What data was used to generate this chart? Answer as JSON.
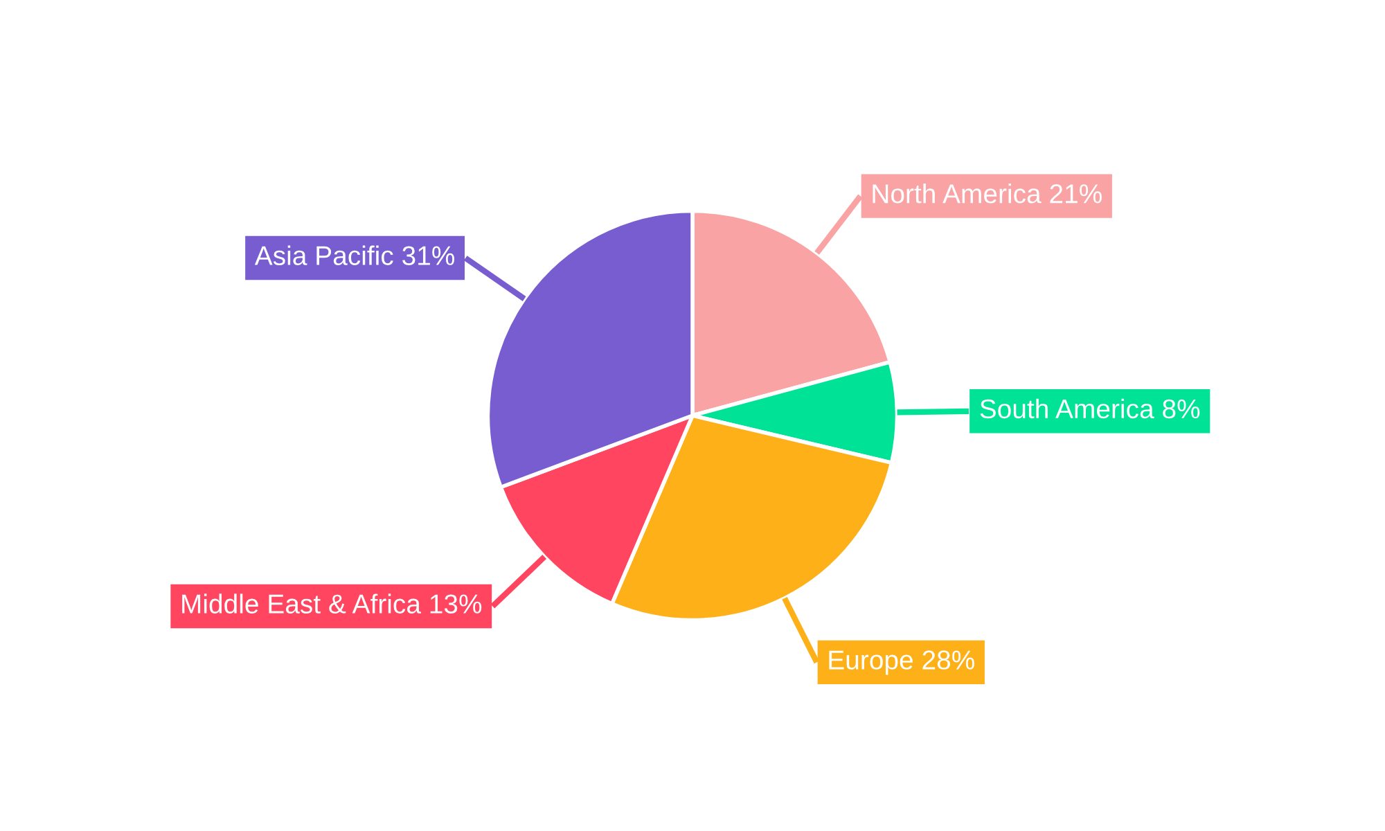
{
  "chart_data": {
    "type": "pie",
    "categories": [
      "North America",
      "South America",
      "Europe",
      "Middle East & Africa",
      "Asia Pacific"
    ],
    "values": [
      21,
      8,
      28,
      13,
      31
    ],
    "value_labels": [
      "21%",
      "8%",
      "28%",
      "13%",
      "31%"
    ],
    "colors": [
      "#f9a3a4",
      "#00e396",
      "#feb019",
      "#ff4560",
      "#775dd0"
    ],
    "legend": false
  }
}
